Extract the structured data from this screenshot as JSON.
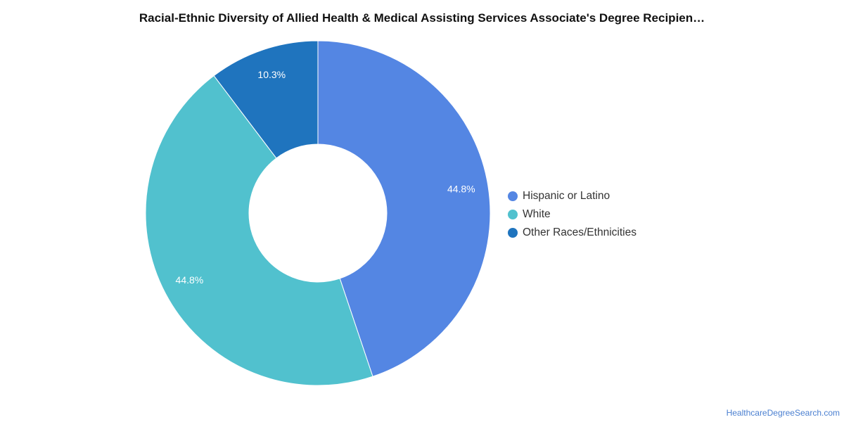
{
  "chart_data": {
    "type": "pie",
    "title": "Racial-Ethnic Diversity of Allied Health & Medical Assisting Services Associate's Degree Recipien…",
    "donut": true,
    "legend_position": "right",
    "slices": [
      {
        "label": "Hispanic or Latino",
        "value": 44.8,
        "display": "44.8%",
        "color": "#5486e3"
      },
      {
        "label": "White",
        "value": 44.8,
        "display": "44.8%",
        "color": "#51c1ce"
      },
      {
        "label": "Other Races/Ethnicities",
        "value": 10.3,
        "display": "10.3%",
        "color": "#1f74be"
      }
    ]
  },
  "footer": {
    "credit": "HealthcareDegreeSearch.com"
  }
}
